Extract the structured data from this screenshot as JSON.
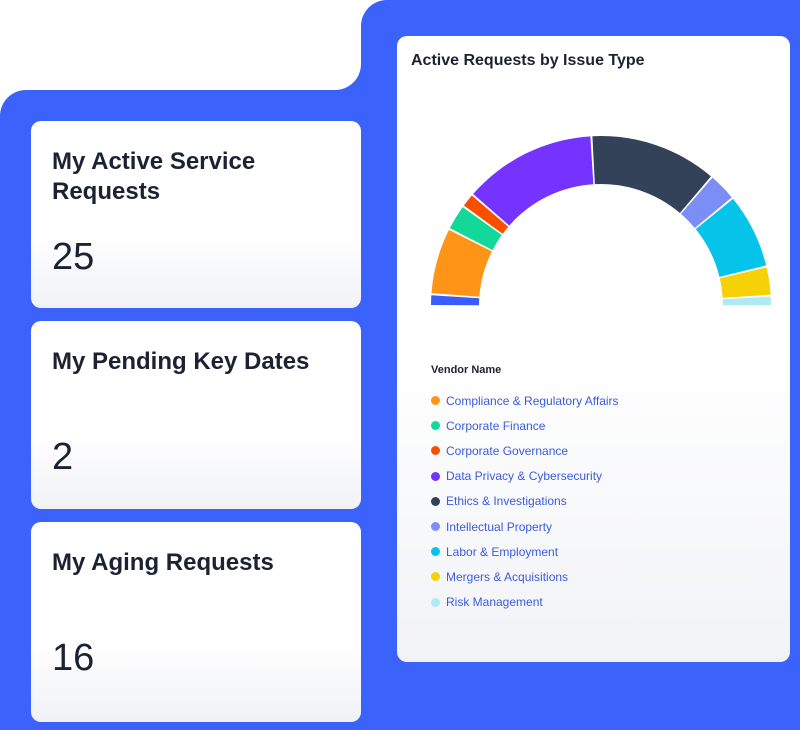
{
  "cards": [
    {
      "title": "My Active Service Requests",
      "value": "25"
    },
    {
      "title": "My Pending Key Dates",
      "value": "2"
    },
    {
      "title": "My Aging Requests",
      "value": "16"
    }
  ],
  "chart_data": {
    "type": "pie",
    "variant": "semi-donut",
    "title": "Active Requests by Issue Type",
    "legend_title": "Vendor Name",
    "legend_placement": "bottom-left",
    "segments": [
      {
        "name": "",
        "value": 4,
        "color": "#3b5bfc"
      },
      {
        "name": "Compliance & Regulatory Affairs",
        "value": 23,
        "color": "#ff9416"
      },
      {
        "name": "Corporate Finance",
        "value": 9,
        "color": "#12d99a"
      },
      {
        "name": "Corporate Governance",
        "value": 5,
        "color": "#fb4f00"
      },
      {
        "name": "Data Privacy & Cybersecurity",
        "value": 46,
        "color": "#7433ff"
      },
      {
        "name": "Ethics & Investigations",
        "value": 44,
        "color": "#334259"
      },
      {
        "name": "Intellectual Property",
        "value": 10,
        "color": "#7a8ef5"
      },
      {
        "name": "Labor & Employment",
        "value": 26,
        "color": "#06c3ea"
      },
      {
        "name": "Mergers & Acquisitions",
        "value": 10,
        "color": "#f7d107"
      },
      {
        "name": "Risk Management",
        "value": 3.5,
        "color": "#aeeaf6"
      }
    ]
  }
}
